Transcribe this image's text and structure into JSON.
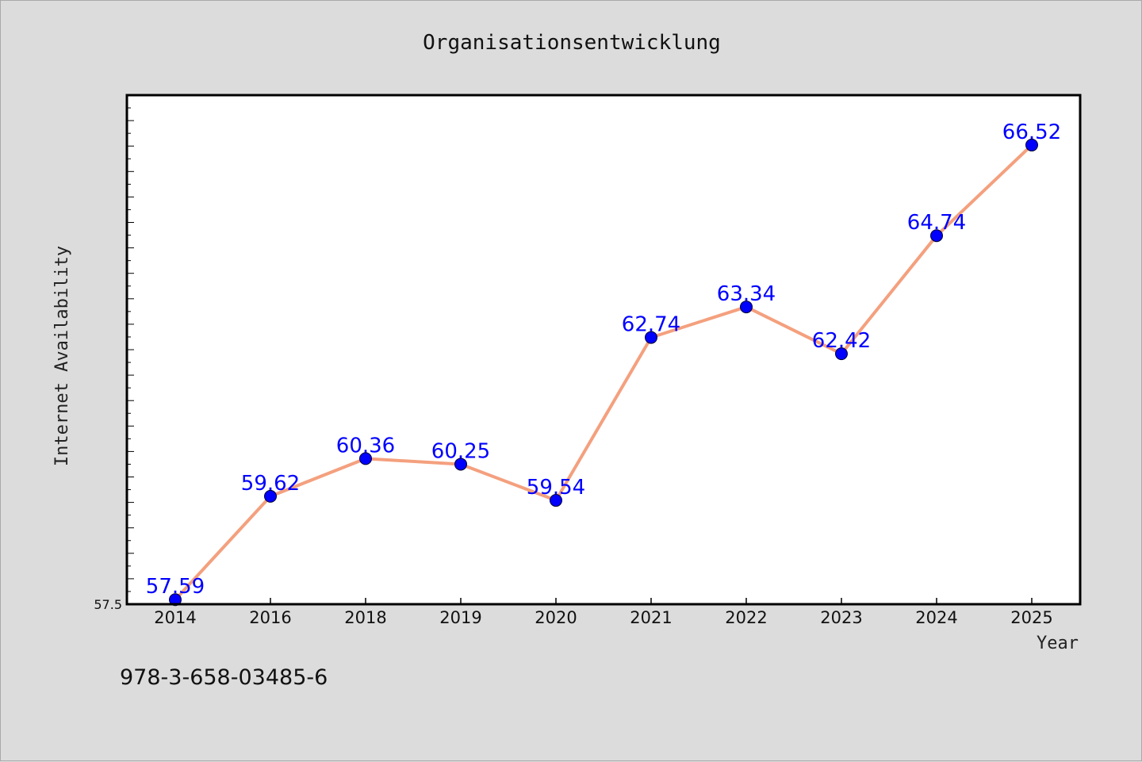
{
  "chart_data": {
    "type": "line",
    "title": "Organisationsentwicklung",
    "xlabel": "Year",
    "ylabel": "Internet Availability",
    "categories": [
      "2014",
      "2016",
      "2018",
      "2019",
      "2020",
      "2021",
      "2022",
      "2023",
      "2024",
      "2025"
    ],
    "series": [
      {
        "values": [
          57.59,
          59.62,
          60.36,
          60.25,
          59.54,
          62.74,
          63.34,
          62.42,
          64.74,
          66.52
        ],
        "labels": [
          "57.59",
          "59.62",
          "60.36",
          "60.25",
          "59.54",
          "62.74",
          "63.34",
          "62.42",
          "64.74",
          "66.52"
        ]
      }
    ],
    "ylim": [
      57.5,
      67.5
    ],
    "yticks_labeled": [
      "57.5"
    ],
    "grid": false,
    "line_color": "#f4a07e",
    "marker_color": "#0000ff",
    "label_color": "#0000ff"
  },
  "footer": {
    "isbn": "978-3-658-03485-6"
  }
}
